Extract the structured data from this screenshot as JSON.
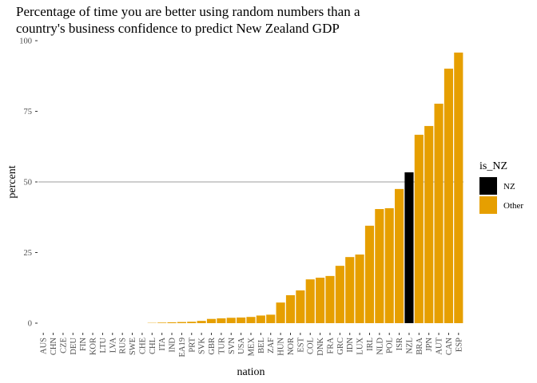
{
  "chart_data": {
    "type": "bar",
    "title": [
      "Percentage of time you are better using random numbers than a",
      "country's business confidence to predict New Zealand GDP"
    ],
    "x_label": "nation",
    "y_label": "percent",
    "categories": [
      "AUS",
      "CHN",
      "CZE",
      "DEU",
      "FIN",
      "KOR",
      "LTU",
      "LVA",
      "RUS",
      "SWE",
      "CHE",
      "CHL",
      "ITA",
      "IND",
      "EA19",
      "PRT",
      "SVK",
      "GBR",
      "TUR",
      "SVN",
      "USA",
      "MEX",
      "BEL",
      "ZAF",
      "HUN",
      "NOR",
      "EST",
      "COL",
      "DNK",
      "FRA",
      "GRC",
      "IDN",
      "LUX",
      "IRL",
      "NLD",
      "POL",
      "ISR",
      "NZL",
      "BRA",
      "JPN",
      "AUT",
      "CAN",
      "ESP"
    ],
    "values": [
      0,
      0,
      0,
      0,
      0,
      0,
      0,
      0,
      0,
      0,
      0,
      0.1,
      0.2,
      0.3,
      0.4,
      0.5,
      0.8,
      1.5,
      1.7,
      1.9,
      2.0,
      2.2,
      2.7,
      3.0,
      7.3,
      9.9,
      11.6,
      15.5,
      16.1,
      16.7,
      20.3,
      23.4,
      24.3,
      34.5,
      40.4,
      40.7,
      47.5,
      53.4,
      66.7,
      69.8,
      77.7,
      90.1,
      95.8
    ],
    "is_NZ": [
      "Other",
      "Other",
      "Other",
      "Other",
      "Other",
      "Other",
      "Other",
      "Other",
      "Other",
      "Other",
      "Other",
      "Other",
      "Other",
      "Other",
      "Other",
      "Other",
      "Other",
      "Other",
      "Other",
      "Other",
      "Other",
      "Other",
      "Other",
      "Other",
      "Other",
      "Other",
      "Other",
      "Other",
      "Other",
      "Other",
      "Other",
      "Other",
      "Other",
      "Other",
      "Other",
      "Other",
      "Other",
      "NZ",
      "Other",
      "Other",
      "Other",
      "Other",
      "Other"
    ],
    "legend": {
      "title": "is_NZ",
      "items": [
        {
          "name": "NZ",
          "color": "#000000"
        },
        {
          "name": "Other",
          "color": "#E69F00"
        }
      ]
    },
    "hline": 50,
    "ylim": [
      0,
      100
    ],
    "yticks": [
      0,
      25,
      50,
      75,
      100
    ],
    "grid": false
  }
}
